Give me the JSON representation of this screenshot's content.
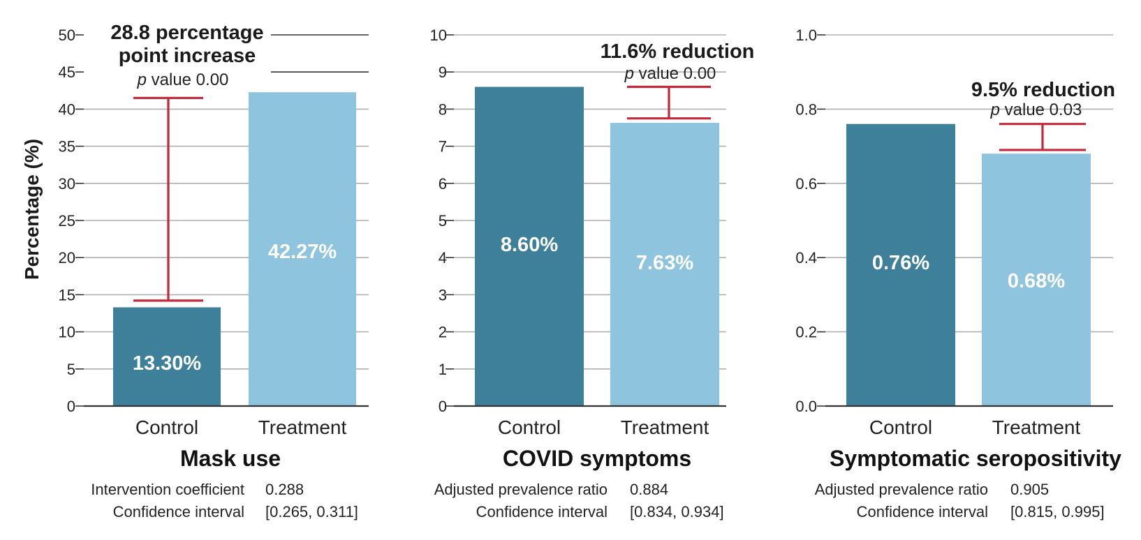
{
  "colors": {
    "control": "#3e7f9a",
    "treatment": "#8fc4de",
    "error_bar": "#c3293a",
    "bar_label": "#ffffff"
  },
  "y_axis_label": "Percentage (%)",
  "panels": [
    {
      "title": "Mask use",
      "annotation_head": [
        "28.8 percentage",
        "point increase"
      ],
      "p_value_prefix": "p",
      "p_value_rest": " value 0.00",
      "stats": [
        {
          "label": "Intervention coefficient",
          "value": "0.288"
        },
        {
          "label": "Confidence interval",
          "value": "[0.265, 0.311]"
        }
      ]
    },
    {
      "title": "COVID symptoms",
      "annotation_head": [
        "11.6% reduction"
      ],
      "p_value_prefix": "p",
      "p_value_rest": " value 0.00",
      "stats": [
        {
          "label": "Adjusted prevalence ratio",
          "value": "0.884"
        },
        {
          "label": "Confidence interval",
          "value": "[0.834, 0.934]"
        }
      ]
    },
    {
      "title": "Symptomatic seropositivity",
      "annotation_head": [
        "9.5% reduction"
      ],
      "p_value_prefix": "p",
      "p_value_rest": " value 0.03",
      "stats": [
        {
          "label": "Adjusted prevalence ratio",
          "value": "0.905"
        },
        {
          "label": "Confidence interval",
          "value": "[0.815, 0.995]"
        }
      ]
    }
  ],
  "chart_data": [
    {
      "type": "bar",
      "title": "Mask use",
      "ylabel": "Percentage (%)",
      "categories": [
        "Control",
        "Treatment"
      ],
      "values": [
        13.3,
        42.27
      ],
      "data_labels": [
        "13.30%",
        "42.27%"
      ],
      "ylim": [
        0,
        50
      ],
      "yticks": [
        "0",
        "5",
        "10",
        "15",
        "20",
        "25",
        "30",
        "35",
        "40",
        "45",
        "50"
      ],
      "error_bar": {
        "from": 14.2,
        "to": 41.5
      },
      "grid": true
    },
    {
      "type": "bar",
      "title": "COVID symptoms",
      "categories": [
        "Control",
        "Treatment"
      ],
      "values": [
        8.6,
        7.63
      ],
      "data_labels": [
        "8.60%",
        "7.63%"
      ],
      "ylim": [
        0,
        10
      ],
      "yticks": [
        "0",
        "1",
        "2",
        "3",
        "4",
        "5",
        "6",
        "7",
        "8",
        "9",
        "10"
      ],
      "error_bar": {
        "from": 7.75,
        "to": 8.6
      },
      "grid": true
    },
    {
      "type": "bar",
      "title": "Symptomatic seropositivity",
      "categories": [
        "Control",
        "Treatment"
      ],
      "values": [
        0.76,
        0.68
      ],
      "data_labels": [
        "0.76%",
        "0.68%"
      ],
      "ylim": [
        0,
        1.0
      ],
      "yticks": [
        "0.0",
        "0.2",
        "0.4",
        "0.6",
        "0.8",
        "1.0"
      ],
      "error_bar": {
        "from": 0.69,
        "to": 0.76
      },
      "grid": true
    }
  ]
}
